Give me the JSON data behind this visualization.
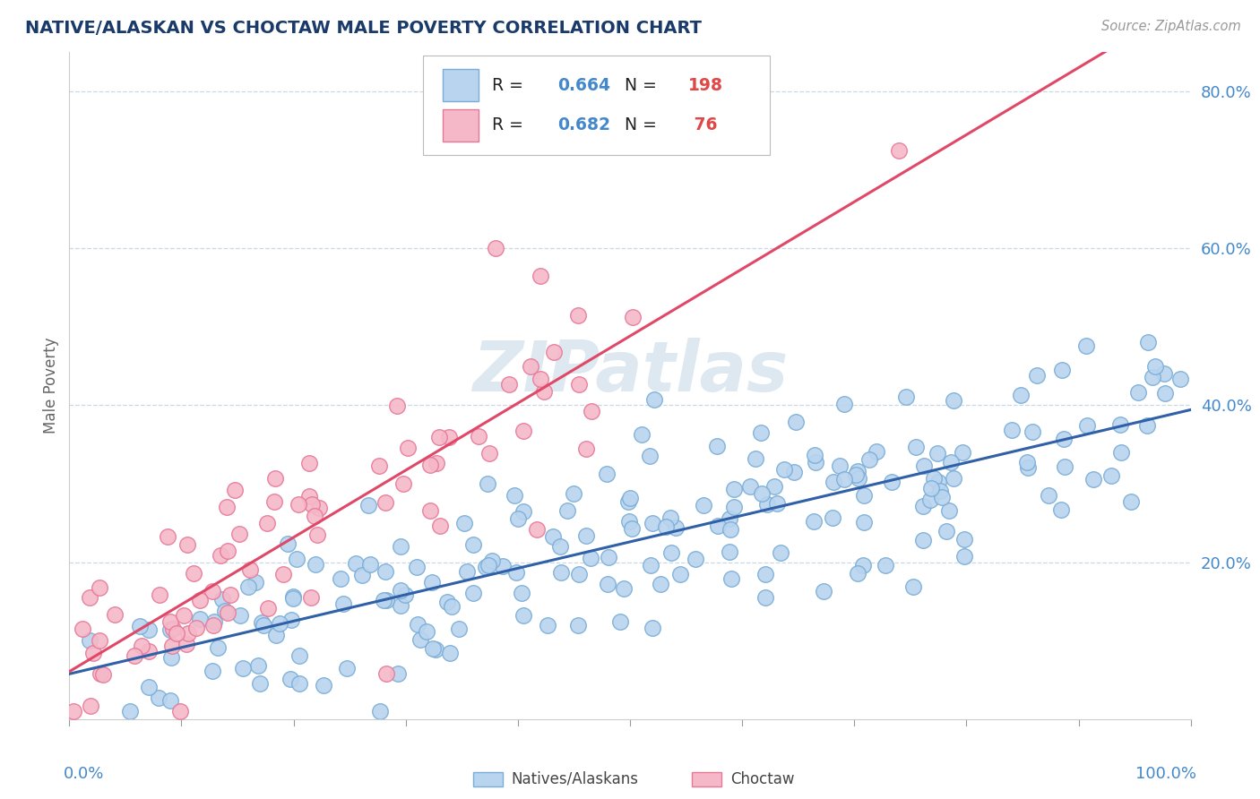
{
  "title": "NATIVE/ALASKAN VS CHOCTAW MALE POVERTY CORRELATION CHART",
  "source": "Source: ZipAtlas.com",
  "ylabel": "Male Poverty",
  "xlim": [
    0.0,
    1.0
  ],
  "ylim": [
    0.0,
    0.85
  ],
  "yticks": [
    0.2,
    0.4,
    0.6,
    0.8
  ],
  "ytick_labels": [
    "20.0%",
    "40.0%",
    "60.0%",
    "80.0%"
  ],
  "series": [
    {
      "name": "Natives/Alaskans",
      "R": 0.664,
      "N": 198,
      "marker_face": "#b8d4ee",
      "marker_edge": "#7aadd8",
      "line_color": "#3060a8"
    },
    {
      "name": "Choctaw",
      "R": 0.682,
      "N": 76,
      "marker_face": "#f5b8c8",
      "marker_edge": "#e87898",
      "line_color": "#e04868"
    }
  ],
  "background_color": "#ffffff",
  "grid_color": "#c8d8e8",
  "title_color": "#1a3a6a",
  "axis_label_color": "#4488cc",
  "legend_R_color": "#4488cc",
  "legend_N_color": "#e04848",
  "watermark_color": "#dde8f0"
}
